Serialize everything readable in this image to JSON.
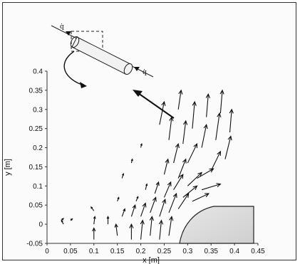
{
  "chart_data": {
    "type": "quiver",
    "xlabel": "x [m]",
    "ylabel": "y [m]",
    "xlim": [
      0,
      0.45
    ],
    "ylim": [
      -0.05,
      0.4
    ],
    "xticks": [
      "0",
      "0.05",
      "0.1",
      "0.15",
      "0.2",
      "0.25",
      "0.3",
      "0.35",
      "0.4",
      "0.45"
    ],
    "yticks": [
      "-0.05",
      "0",
      "0.05",
      "0.1",
      "0.15",
      "0.2",
      "0.25",
      "0.3",
      "0.35",
      "0.4"
    ],
    "grid": false,
    "vectors": [
      {
        "x": 0.03,
        "y": 0.01,
        "u": 0.005,
        "v": 0.005
      },
      {
        "x": 0.035,
        "y": 0.0,
        "u": -0.004,
        "v": 0.01
      },
      {
        "x": 0.05,
        "y": 0.01,
        "u": 0.004,
        "v": 0.004
      },
      {
        "x": 0.1,
        "y": -0.04,
        "u": 0.0,
        "v": 0.03
      },
      {
        "x": 0.1,
        "y": 0.0,
        "u": 0.002,
        "v": 0.02
      },
      {
        "x": 0.1,
        "y": 0.035,
        "u": -0.006,
        "v": 0.01
      },
      {
        "x": 0.13,
        "y": 0.0,
        "u": 0.0,
        "v": 0.02
      },
      {
        "x": 0.15,
        "y": -0.03,
        "u": -0.003,
        "v": 0.03
      },
      {
        "x": 0.16,
        "y": 0.02,
        "u": 0.006,
        "v": 0.02
      },
      {
        "x": 0.18,
        "y": -0.04,
        "u": 0.0,
        "v": 0.04
      },
      {
        "x": 0.18,
        "y": 0.02,
        "u": 0.008,
        "v": 0.03
      },
      {
        "x": 0.19,
        "y": 0.06,
        "u": 0.004,
        "v": 0.012
      },
      {
        "x": 0.2,
        "y": -0.04,
        "u": 0.004,
        "v": 0.05
      },
      {
        "x": 0.2,
        "y": 0.02,
        "u": 0.01,
        "v": 0.035
      },
      {
        "x": 0.21,
        "y": 0.09,
        "u": 0.003,
        "v": 0.015
      },
      {
        "x": 0.22,
        "y": -0.03,
        "u": 0.004,
        "v": 0.05
      },
      {
        "x": 0.22,
        "y": 0.03,
        "u": 0.012,
        "v": 0.04
      },
      {
        "x": 0.23,
        "y": 0.08,
        "u": 0.008,
        "v": 0.03
      },
      {
        "x": 0.24,
        "y": -0.04,
        "u": 0.004,
        "v": 0.05
      },
      {
        "x": 0.24,
        "y": 0.02,
        "u": 0.012,
        "v": 0.045
      },
      {
        "x": 0.25,
        "y": 0.07,
        "u": 0.014,
        "v": 0.04
      },
      {
        "x": 0.25,
        "y": 0.13,
        "u": 0.008,
        "v": 0.04
      },
      {
        "x": 0.26,
        "y": -0.03,
        "u": 0.006,
        "v": 0.05
      },
      {
        "x": 0.26,
        "y": 0.03,
        "u": 0.016,
        "v": 0.05
      },
      {
        "x": 0.27,
        "y": 0.09,
        "u": 0.02,
        "v": 0.04
      },
      {
        "x": 0.27,
        "y": 0.16,
        "u": 0.01,
        "v": 0.05
      },
      {
        "x": 0.28,
        "y": 0.04,
        "u": 0.022,
        "v": 0.04
      },
      {
        "x": 0.28,
        "y": 0.12,
        "u": 0.016,
        "v": 0.05
      },
      {
        "x": 0.29,
        "y": 0.07,
        "u": 0.03,
        "v": 0.03
      },
      {
        "x": 0.29,
        "y": 0.21,
        "u": 0.006,
        "v": 0.06
      },
      {
        "x": 0.3,
        "y": 0.1,
        "u": 0.03,
        "v": 0.035
      },
      {
        "x": 0.3,
        "y": 0.16,
        "u": 0.02,
        "v": 0.05
      },
      {
        "x": 0.31,
        "y": 0.06,
        "u": 0.035,
        "v": 0.02
      },
      {
        "x": 0.31,
        "y": 0.25,
        "u": 0.005,
        "v": 0.07
      },
      {
        "x": 0.32,
        "y": 0.12,
        "u": 0.035,
        "v": 0.025
      },
      {
        "x": 0.33,
        "y": 0.09,
        "u": 0.04,
        "v": 0.015
      },
      {
        "x": 0.33,
        "y": 0.2,
        "u": 0.01,
        "v": 0.06
      },
      {
        "x": 0.34,
        "y": 0.28,
        "u": 0.004,
        "v": 0.06
      },
      {
        "x": 0.35,
        "y": 0.14,
        "u": 0.02,
        "v": 0.05
      },
      {
        "x": 0.36,
        "y": 0.22,
        "u": 0.008,
        "v": 0.07
      },
      {
        "x": 0.37,
        "y": 0.29,
        "u": 0.004,
        "v": 0.06
      },
      {
        "x": 0.38,
        "y": 0.17,
        "u": 0.012,
        "v": 0.06
      },
      {
        "x": 0.39,
        "y": 0.24,
        "u": 0.004,
        "v": 0.06
      },
      {
        "x": 0.24,
        "y": 0.26,
        "u": 0.01,
        "v": 0.06
      },
      {
        "x": 0.26,
        "y": 0.22,
        "u": 0.006,
        "v": 0.06
      },
      {
        "x": 0.28,
        "y": 0.3,
        "u": 0.006,
        "v": 0.05
      },
      {
        "x": 0.16,
        "y": 0.12,
        "u": 0.003,
        "v": 0.012
      },
      {
        "x": 0.18,
        "y": 0.16,
        "u": 0.002,
        "v": 0.01
      },
      {
        "x": 0.2,
        "y": 0.2,
        "u": 0.002,
        "v": 0.01
      },
      {
        "x": 0.15,
        "y": 0.06,
        "u": 0.003,
        "v": 0.01
      }
    ],
    "labels": [
      "q̇",
      "q̇"
    ]
  }
}
